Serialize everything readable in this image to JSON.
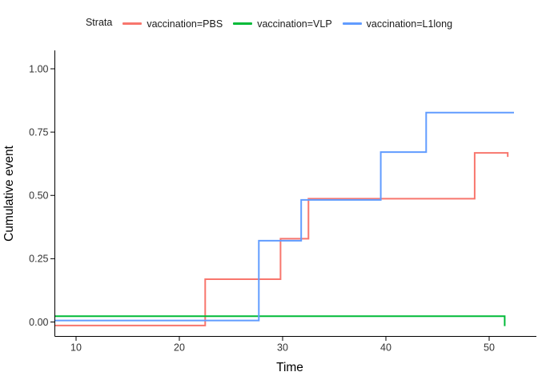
{
  "window": {
    "background": "#ffffff"
  },
  "chart_data": {
    "type": "line",
    "subtype": "step-cumulative-incidence",
    "title": "",
    "xlabel": "Time",
    "ylabel": "Cumulative event",
    "legend_title": "Strata",
    "legend_position": "top",
    "grid": false,
    "xlim": [
      7.9,
      54.4
    ],
    "ylim": [
      -0.055,
      1.07
    ],
    "x_ticks": [
      {
        "value": 10,
        "label": "10"
      },
      {
        "value": 20,
        "label": "20"
      },
      {
        "value": 30,
        "label": "30"
      },
      {
        "value": 40,
        "label": "40"
      },
      {
        "value": 50,
        "label": "50"
      }
    ],
    "y_ticks": [
      {
        "value": 0.0,
        "label": "0.00"
      },
      {
        "value": 0.25,
        "label": "0.25"
      },
      {
        "value": 0.5,
        "label": "0.50"
      },
      {
        "value": 0.75,
        "label": "0.75"
      },
      {
        "value": 1.0,
        "label": "1.00"
      }
    ],
    "series": [
      {
        "name": "vaccination=PBS",
        "color": "#F8766D",
        "step_points": [
          [
            7.9,
            -0.014
          ],
          [
            22.5,
            -0.014
          ],
          [
            22.5,
            0.169
          ],
          [
            29.8,
            0.169
          ],
          [
            29.8,
            0.329
          ],
          [
            32.5,
            0.329
          ],
          [
            32.5,
            0.487
          ],
          [
            48.6,
            0.487
          ],
          [
            48.6,
            0.668
          ],
          [
            51.8,
            0.668
          ],
          [
            51.8,
            0.652
          ]
        ]
      },
      {
        "name": "vaccination=VLP",
        "color": "#00BA38",
        "step_points": [
          [
            7.9,
            0.023
          ],
          [
            51.5,
            0.023
          ],
          [
            51.5,
            -0.016
          ]
        ]
      },
      {
        "name": "vaccination=L1long",
        "color": "#619CFF",
        "step_points": [
          [
            7.9,
            0.006
          ],
          [
            27.7,
            0.006
          ],
          [
            27.7,
            0.321
          ],
          [
            31.8,
            0.321
          ],
          [
            31.8,
            0.482
          ],
          [
            39.5,
            0.482
          ],
          [
            39.5,
            0.671
          ],
          [
            43.9,
            0.671
          ],
          [
            43.9,
            0.827
          ],
          [
            52.4,
            0.827
          ]
        ]
      }
    ]
  }
}
